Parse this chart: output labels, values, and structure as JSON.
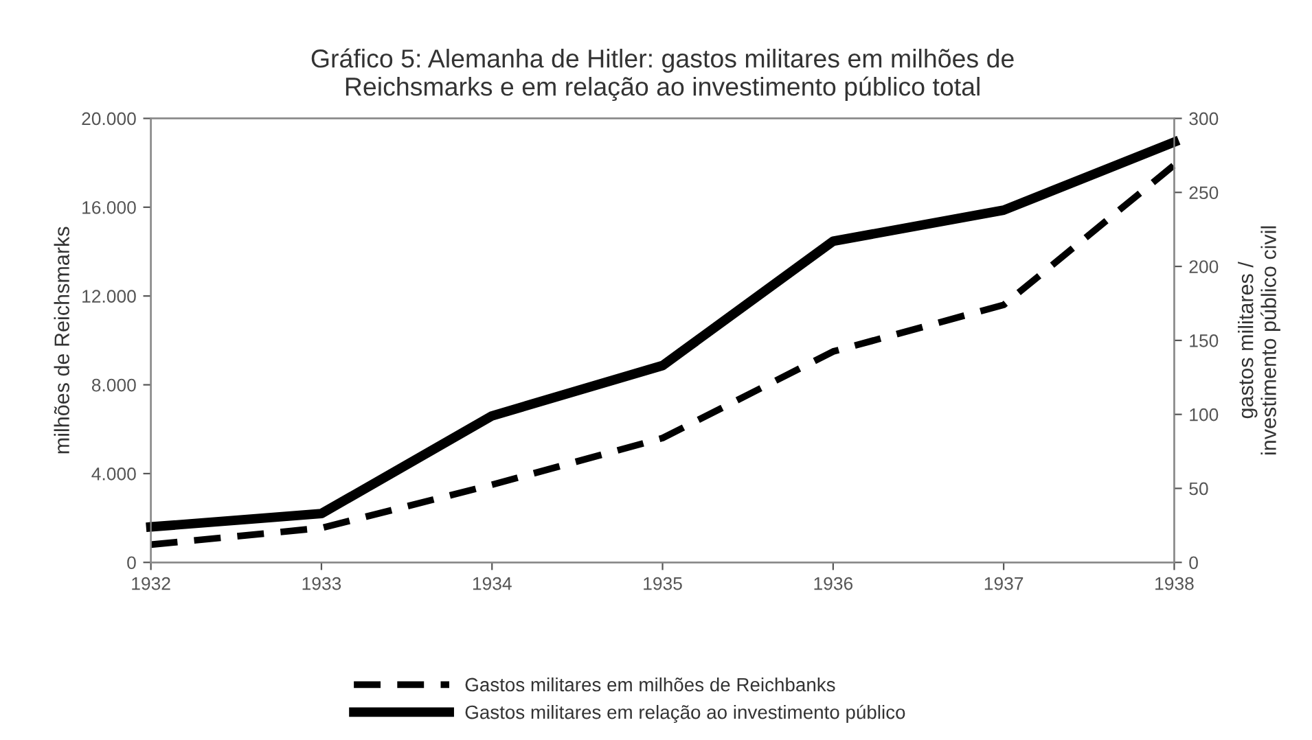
{
  "chart_data": {
    "type": "line",
    "title": "Gráfico 5: Alemanha de Hitler: gastos militares em milhões de\nReichsmarks e em relação ao investimento público total",
    "ylabel": "milhões de Reichsmarks",
    "y2label": "gastos militares /\ninvestimento público civil",
    "x": [
      1932,
      1933,
      1934,
      1935,
      1936,
      1937,
      1938
    ],
    "xlim": [
      1932,
      1938
    ],
    "xticks": [
      1932,
      1933,
      1934,
      1935,
      1936,
      1937,
      1938
    ],
    "ylim": [
      0,
      20000
    ],
    "yticks": [
      {
        "value": 0,
        "label": "0"
      },
      {
        "value": 4000,
        "label": "4.000"
      },
      {
        "value": 8000,
        "label": "8.000"
      },
      {
        "value": 12000,
        "label": "12.000"
      },
      {
        "value": 16000,
        "label": "16.000"
      },
      {
        "value": 20000,
        "label": "20.000"
      }
    ],
    "y2lim": [
      0,
      300
    ],
    "y2ticks": [
      0,
      50,
      100,
      150,
      200,
      250,
      300
    ],
    "series": [
      {
        "name": "Gastos militares em milhões de Reichbanks",
        "color": "#000000",
        "line_style": "dashed",
        "values": [
          800,
          1550,
          3500,
          5600,
          9500,
          11600,
          17900
        ]
      },
      {
        "name": "Gastos militares em relação ao investimento público",
        "color": "#000000",
        "line_style": "solid",
        "axis": "y2",
        "values": [
          24,
          33,
          99,
          133,
          217,
          238,
          284
        ]
      }
    ],
    "legend": "bottom",
    "grid": false
  }
}
